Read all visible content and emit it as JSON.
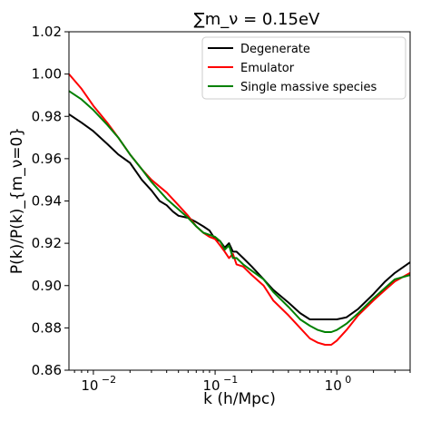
{
  "chart_data": {
    "type": "line",
    "title": "∑m_ν = 0.15eV",
    "xlabel": "k (h/Mpc)",
    "ylabel": "P(k)/P(k)_{m_ν=0}",
    "xscale": "log",
    "xlim": [
      0.0063,
      4.0
    ],
    "ylim": [
      0.86,
      1.02
    ],
    "y_ticks": [
      0.86,
      0.88,
      0.9,
      0.92,
      0.94,
      0.96,
      0.98,
      1.0,
      1.02
    ],
    "y_tick_labels": [
      "0.86",
      "0.88",
      "0.90",
      "0.92",
      "0.94",
      "0.96",
      "0.98",
      "1.00",
      "1.02"
    ],
    "x_ticks": [
      0.01,
      0.1,
      1.0
    ],
    "x_tick_labels": [
      "10",
      "10",
      "10"
    ],
    "x_tick_exponents": [
      "−2",
      "−1",
      "0"
    ],
    "grid": false,
    "legend_position": "top-right",
    "series": [
      {
        "name": "Degenerate",
        "color": "#000000",
        "x": [
          0.0063,
          0.008,
          0.01,
          0.013,
          0.016,
          0.02,
          0.025,
          0.03,
          0.035,
          0.04,
          0.045,
          0.05,
          0.06,
          0.07,
          0.08,
          0.09,
          0.1,
          0.11,
          0.12,
          0.13,
          0.14,
          0.15,
          0.17,
          0.2,
          0.25,
          0.3,
          0.4,
          0.5,
          0.6,
          0.8,
          1.0,
          1.2,
          1.5,
          2.0,
          2.5,
          3.0,
          4.0
        ],
        "y": [
          0.981,
          0.977,
          0.973,
          0.967,
          0.962,
          0.958,
          0.95,
          0.945,
          0.94,
          0.938,
          0.935,
          0.933,
          0.932,
          0.93,
          0.928,
          0.926,
          0.922,
          0.921,
          0.918,
          0.92,
          0.916,
          0.916,
          0.913,
          0.909,
          0.903,
          0.898,
          0.892,
          0.887,
          0.884,
          0.884,
          0.884,
          0.885,
          0.889,
          0.896,
          0.902,
          0.906,
          0.911
        ]
      },
      {
        "name": "Emulator",
        "color": "#ff0000",
        "x": [
          0.0063,
          0.008,
          0.01,
          0.013,
          0.016,
          0.02,
          0.025,
          0.03,
          0.04,
          0.05,
          0.06,
          0.07,
          0.08,
          0.09,
          0.1,
          0.11,
          0.12,
          0.13,
          0.14,
          0.15,
          0.17,
          0.2,
          0.25,
          0.3,
          0.4,
          0.5,
          0.6,
          0.7,
          0.8,
          0.9,
          1.0,
          1.2,
          1.5,
          2.0,
          2.5,
          3.0,
          4.0
        ],
        "y": [
          1.0,
          0.993,
          0.985,
          0.977,
          0.97,
          0.962,
          0.955,
          0.95,
          0.944,
          0.938,
          0.933,
          0.928,
          0.925,
          0.923,
          0.922,
          0.919,
          0.916,
          0.913,
          0.915,
          0.91,
          0.909,
          0.905,
          0.9,
          0.893,
          0.886,
          0.88,
          0.875,
          0.873,
          0.872,
          0.872,
          0.874,
          0.879,
          0.886,
          0.893,
          0.898,
          0.902,
          0.906
        ]
      },
      {
        "name": "Single massive species",
        "color": "#008000",
        "x": [
          0.0063,
          0.008,
          0.01,
          0.013,
          0.016,
          0.02,
          0.025,
          0.03,
          0.04,
          0.05,
          0.06,
          0.07,
          0.08,
          0.09,
          0.1,
          0.11,
          0.12,
          0.13,
          0.14,
          0.15,
          0.17,
          0.2,
          0.25,
          0.3,
          0.4,
          0.5,
          0.6,
          0.7,
          0.8,
          0.9,
          1.0,
          1.2,
          1.5,
          2.0,
          2.5,
          3.0,
          4.0
        ],
        "y": [
          0.992,
          0.988,
          0.983,
          0.976,
          0.97,
          0.962,
          0.955,
          0.949,
          0.941,
          0.936,
          0.932,
          0.928,
          0.925,
          0.924,
          0.923,
          0.921,
          0.917,
          0.919,
          0.913,
          0.913,
          0.91,
          0.907,
          0.903,
          0.897,
          0.89,
          0.884,
          0.881,
          0.879,
          0.878,
          0.878,
          0.879,
          0.882,
          0.887,
          0.894,
          0.899,
          0.903,
          0.905
        ]
      }
    ]
  }
}
